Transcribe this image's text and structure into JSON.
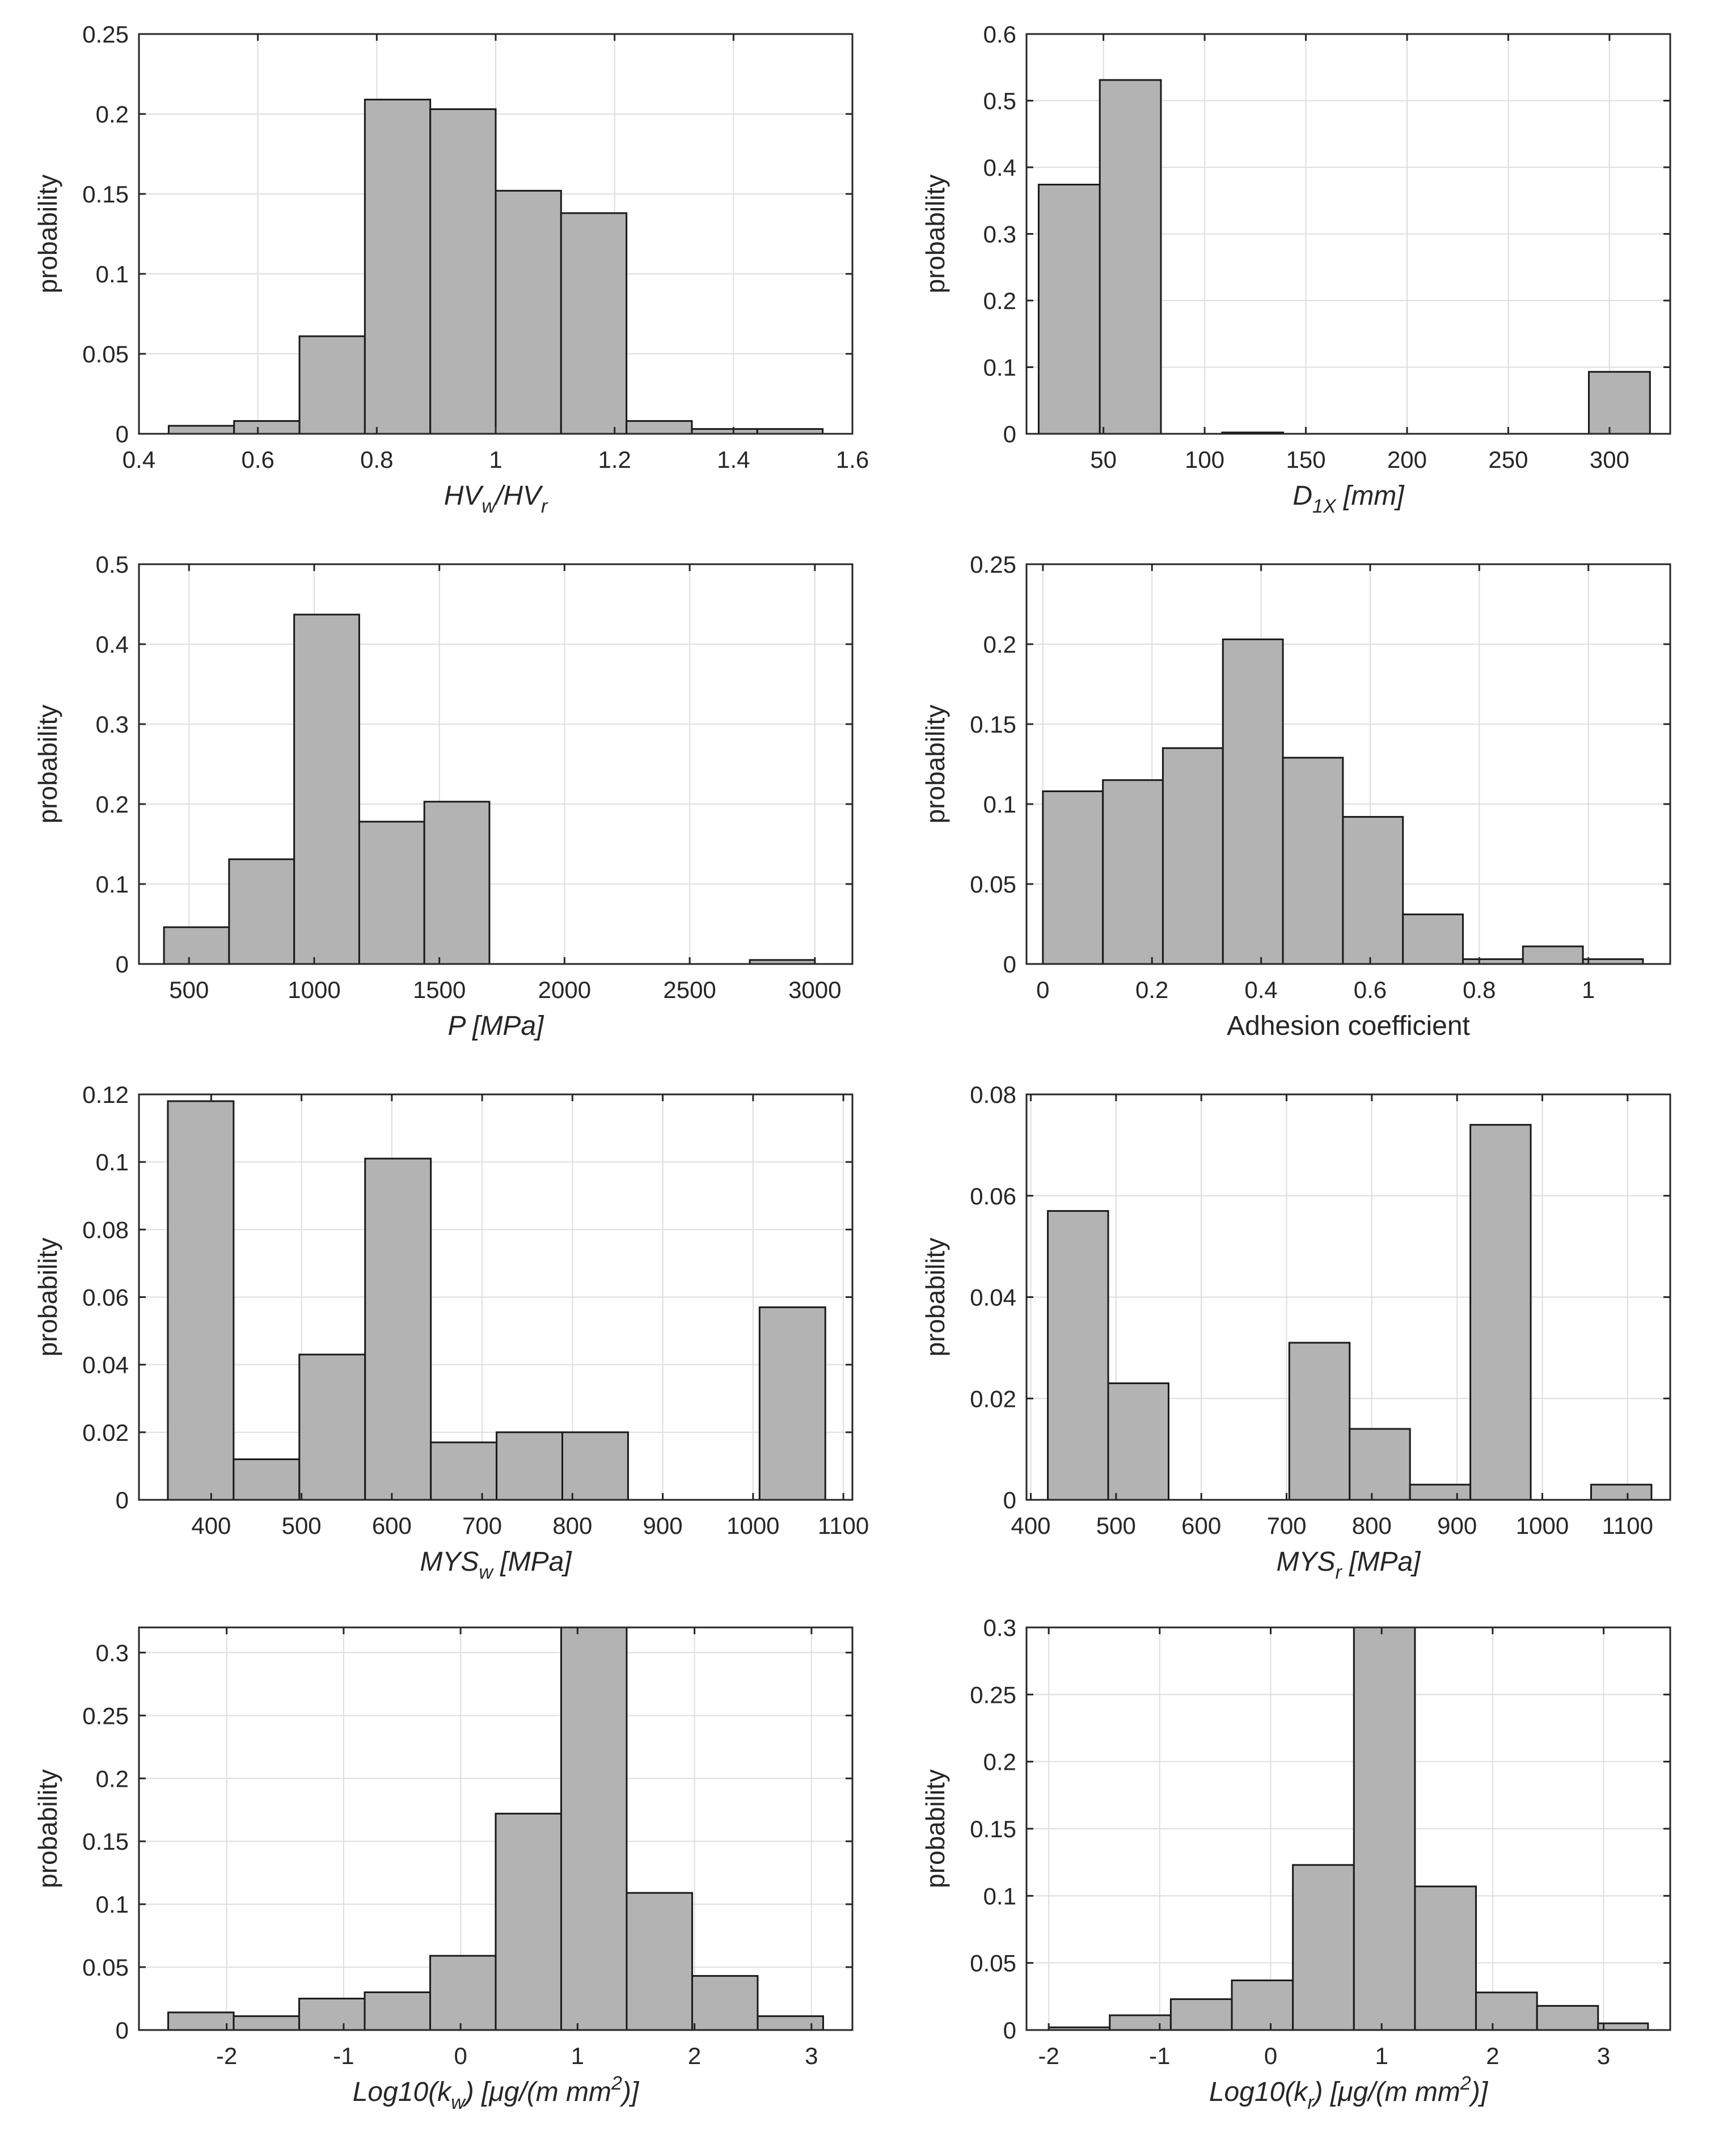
{
  "colors": {
    "bar_fill": "#b3b3b3",
    "bar_edge": "#1a1a1a",
    "grid": "#dedede",
    "axis": "#262626",
    "background": "#ffffff"
  },
  "chart_data": [
    {
      "id": "hv-ratio",
      "type": "bar",
      "title": "",
      "ylabel": "probability",
      "xlabel_parts": [
        {
          "t": "HV"
        },
        {
          "t": "w",
          "sub": true
        },
        {
          "t": "/HV"
        },
        {
          "t": "r",
          "sub": true
        }
      ],
      "xlabel_italic": true,
      "xlim": [
        0.4,
        1.6
      ],
      "ylim": [
        0,
        0.25
      ],
      "xticks": [
        0.4,
        0.6,
        0.8,
        1,
        1.2,
        1.4,
        1.6
      ],
      "xtick_labels": [
        "0.4",
        "0.6",
        "0.8",
        "1",
        "1.2",
        "1.4",
        "1.6"
      ],
      "yticks": [
        0,
        0.05,
        0.1,
        0.15,
        0.2,
        0.25
      ],
      "ytick_labels": [
        "0",
        "0.05",
        "0.1",
        "0.15",
        "0.2",
        "0.25"
      ],
      "bin_edges": [
        0.45,
        0.56,
        0.67,
        0.78,
        0.89,
        1.0,
        1.11,
        1.22,
        1.33,
        1.44,
        1.55
      ],
      "values": [
        0.005,
        0.008,
        0.061,
        0.209,
        0.203,
        0.152,
        0.138,
        0.008,
        0.003,
        0.003
      ],
      "grid": true
    },
    {
      "id": "d1x",
      "type": "bar",
      "title": "",
      "ylabel": "probability",
      "xlabel_parts": [
        {
          "t": "D"
        },
        {
          "t": "1X",
          "sub": true
        },
        {
          "t": " [mm]"
        }
      ],
      "xlabel_italic": true,
      "xlim": [
        12,
        330
      ],
      "ylim": [
        0,
        0.6
      ],
      "xticks": [
        50,
        100,
        150,
        200,
        250,
        300
      ],
      "xtick_labels": [
        "50",
        "100",
        "150",
        "200",
        "250",
        "300"
      ],
      "yticks": [
        0,
        0.1,
        0.2,
        0.3,
        0.4,
        0.5,
        0.6
      ],
      "ytick_labels": [
        "0",
        "0.1",
        "0.2",
        "0.3",
        "0.4",
        "0.5",
        "0.6"
      ],
      "bin_edges": [
        18,
        48.2,
        78.4,
        108.6,
        138.8,
        169,
        199.2,
        229.4,
        259.6,
        289.8,
        320
      ],
      "values": [
        0.374,
        0.531,
        0,
        0.002,
        0,
        0,
        0,
        0,
        0,
        0.093
      ],
      "grid": true
    },
    {
      "id": "pressure",
      "type": "bar",
      "title": "",
      "ylabel": "probability",
      "xlabel_parts": [
        {
          "t": "P [MPa]"
        }
      ],
      "xlabel_italic": true,
      "xlim": [
        300,
        3150
      ],
      "ylim": [
        0,
        0.5
      ],
      "xticks": [
        500,
        1000,
        1500,
        2000,
        2500,
        3000
      ],
      "xtick_labels": [
        "500",
        "1000",
        "1500",
        "2000",
        "2500",
        "3000"
      ],
      "yticks": [
        0,
        0.1,
        0.2,
        0.3,
        0.4,
        0.5
      ],
      "ytick_labels": [
        "0",
        "0.1",
        "0.2",
        "0.3",
        "0.4",
        "0.5"
      ],
      "bin_edges": [
        400,
        660,
        920,
        1180,
        1440,
        1700,
        1960,
        2220,
        2480,
        2740,
        3000
      ],
      "values": [
        0.046,
        0.131,
        0.437,
        0.178,
        0.203,
        0,
        0,
        0,
        0,
        0.005
      ],
      "grid": true
    },
    {
      "id": "adhesion",
      "type": "bar",
      "title": "",
      "ylabel": "probability",
      "xlabel_parts": [
        {
          "t": "Adhesion coefficient"
        }
      ],
      "xlabel_italic": false,
      "xlim": [
        -0.03,
        1.15
      ],
      "ylim": [
        0,
        0.25
      ],
      "xticks": [
        0,
        0.2,
        0.4,
        0.6,
        0.8,
        1
      ],
      "xtick_labels": [
        "0",
        "0.2",
        "0.4",
        "0.6",
        "0.8",
        "1"
      ],
      "yticks": [
        0,
        0.05,
        0.1,
        0.15,
        0.2,
        0.25
      ],
      "ytick_labels": [
        "0",
        "0.05",
        "0.1",
        "0.15",
        "0.2",
        "0.25"
      ],
      "bin_edges": [
        0,
        0.11,
        0.22,
        0.33,
        0.44,
        0.55,
        0.66,
        0.77,
        0.88,
        0.99,
        1.1
      ],
      "values": [
        0.108,
        0.115,
        0.135,
        0.203,
        0.129,
        0.092,
        0.031,
        0.003,
        0.011,
        0.003
      ],
      "grid": true
    },
    {
      "id": "mys-w",
      "type": "bar",
      "title": "",
      "ylabel": "probability",
      "xlabel_parts": [
        {
          "t": "MYS"
        },
        {
          "t": "w",
          "sub": true
        },
        {
          "t": " [MPa]"
        }
      ],
      "xlabel_italic": true,
      "xlim": [
        320,
        1110
      ],
      "ylim": [
        0,
        0.12
      ],
      "xticks": [
        400,
        500,
        600,
        700,
        800,
        900,
        1000,
        1100
      ],
      "xtick_labels": [
        "400",
        "500",
        "600",
        "700",
        "800",
        "900",
        "1000",
        "1100"
      ],
      "yticks": [
        0,
        0.02,
        0.04,
        0.06,
        0.08,
        0.1,
        0.12
      ],
      "ytick_labels": [
        "0",
        "0.02",
        "0.04",
        "0.06",
        "0.08",
        "0.1",
        "0.12"
      ],
      "bin_edges": [
        352,
        424.8,
        497.6,
        570.4,
        643.2,
        716,
        788.8,
        861.6,
        934.4,
        1007.2,
        1080
      ],
      "values": [
        0.118,
        0.012,
        0.043,
        0.101,
        0.017,
        0.02,
        0.02,
        0,
        0,
        0.057
      ],
      "grid": true
    },
    {
      "id": "mys-r",
      "type": "bar",
      "title": "",
      "ylabel": "probability",
      "xlabel_parts": [
        {
          "t": "MYS"
        },
        {
          "t": "r",
          "sub": true
        },
        {
          "t": " [MPa]"
        }
      ],
      "xlabel_italic": true,
      "xlim": [
        395,
        1150
      ],
      "ylim": [
        0,
        0.08
      ],
      "xticks": [
        400,
        500,
        600,
        700,
        800,
        900,
        1000,
        1100
      ],
      "xtick_labels": [
        "400",
        "500",
        "600",
        "700",
        "800",
        "900",
        "1000",
        "1100"
      ],
      "yticks": [
        0,
        0.02,
        0.04,
        0.06,
        0.08
      ],
      "ytick_labels": [
        "0",
        "0.02",
        "0.04",
        "0.06",
        "0.08"
      ],
      "bin_edges": [
        420,
        490.8,
        561.6,
        632.4,
        703.2,
        774,
        844.8,
        915.6,
        986.4,
        1057.2,
        1128
      ],
      "values": [
        0.057,
        0.023,
        0,
        0,
        0.031,
        0.014,
        0.003,
        0.074,
        0,
        0.003
      ],
      "grid": true
    },
    {
      "id": "log-kw",
      "type": "bar",
      "title": "",
      "ylabel": "probability",
      "xlabel_parts": [
        {
          "t": "Log10(k"
        },
        {
          "t": "w",
          "sub": true
        },
        {
          "t": ") [μg/(m mm"
        },
        {
          "t": "2",
          "sup": true
        },
        {
          "t": ")]"
        }
      ],
      "xlabel_italic": true,
      "xlim": [
        -2.75,
        3.35
      ],
      "ylim": [
        0,
        0.32
      ],
      "xticks": [
        -2,
        -1,
        0,
        1,
        2,
        3
      ],
      "xtick_labels": [
        "-2",
        "-1",
        "0",
        "1",
        "2",
        "3"
      ],
      "yticks": [
        0,
        0.05,
        0.1,
        0.15,
        0.2,
        0.25,
        0.3
      ],
      "ytick_labels": [
        "0",
        "0.05",
        "0.1",
        "0.15",
        "0.2",
        "0.25",
        "0.3"
      ],
      "bin_edges": [
        -2.5,
        -1.94,
        -1.38,
        -0.82,
        -0.26,
        0.3,
        0.86,
        1.42,
        1.98,
        2.54,
        3.1
      ],
      "values": [
        0.014,
        0.011,
        0.025,
        0.03,
        0.059,
        0.172,
        0.32,
        0.109,
        0.043,
        0.011
      ],
      "grid": true
    },
    {
      "id": "log-kr",
      "type": "bar",
      "title": "",
      "ylabel": "probability",
      "xlabel_parts": [
        {
          "t": "Log10(k"
        },
        {
          "t": "r",
          "sub": true
        },
        {
          "t": ") [μg/(m mm"
        },
        {
          "t": "2",
          "sup": true
        },
        {
          "t": ")]"
        }
      ],
      "xlabel_italic": true,
      "xlim": [
        -2.2,
        3.6
      ],
      "ylim": [
        0,
        0.3
      ],
      "xticks": [
        -2,
        -1,
        0,
        1,
        2,
        3
      ],
      "xtick_labels": [
        "-2",
        "-1",
        "0",
        "1",
        "2",
        "3"
      ],
      "yticks": [
        0,
        0.05,
        0.1,
        0.15,
        0.2,
        0.25,
        0.3
      ],
      "ytick_labels": [
        "0",
        "0.05",
        "0.1",
        "0.15",
        "0.2",
        "0.25",
        "0.3"
      ],
      "bin_edges": [
        -2,
        -1.45,
        -0.9,
        -0.35,
        0.2,
        0.75,
        1.3,
        1.85,
        2.4,
        2.95,
        3.4
      ],
      "values": [
        0.002,
        0.011,
        0.023,
        0.037,
        0.123,
        0.3,
        0.107,
        0.028,
        0.018,
        0.005
      ],
      "grid": true
    }
  ]
}
